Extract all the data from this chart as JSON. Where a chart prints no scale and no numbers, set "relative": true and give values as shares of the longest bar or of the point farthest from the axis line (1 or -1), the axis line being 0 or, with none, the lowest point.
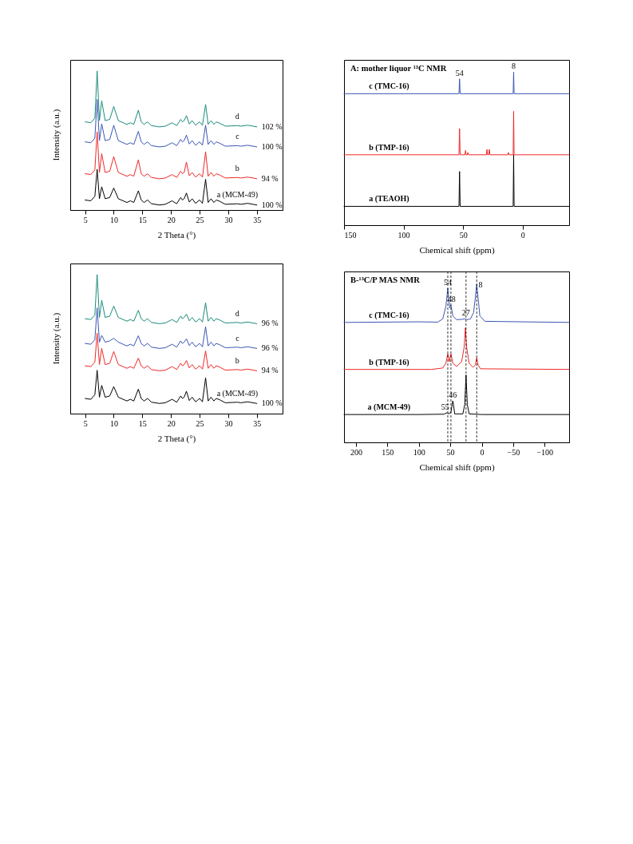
{
  "chart_data": [
    {
      "type": "line",
      "relative": true,
      "xlabel": "2 Theta (°)",
      "ylabel": "Intensity (a.u.)",
      "xlim": [
        2.4,
        39.5
      ],
      "xticks": [
        5,
        10,
        15,
        20,
        25,
        30,
        35
      ],
      "x": [
        5,
        6,
        6.7,
        7.1,
        7.5,
        7.9,
        8.5,
        9.3,
        10.0,
        10.8,
        12.3,
        12.9,
        13.5,
        14.3,
        14.8,
        15.3,
        15.9,
        16.6,
        18,
        19,
        20.2,
        21,
        21.7,
        22.0,
        22.3,
        22.7,
        23.2,
        23.7,
        24.3,
        25.0,
        25.5,
        26.05,
        26.5,
        27.0,
        27.5,
        27.9,
        28.5,
        29.5,
        31.6,
        32.2,
        33.4,
        35
      ],
      "series": [
        {
          "name": "a (MCM-49)",
          "color": "#000000",
          "values": [
            0.072,
            0.066,
            0.099,
            0.293,
            0.081,
            0.167,
            0.081,
            0.09,
            0.158,
            0.081,
            0.054,
            0.066,
            0.054,
            0.138,
            0.072,
            0.054,
            0.072,
            0.045,
            0.036,
            0.041,
            0.066,
            0.045,
            0.09,
            0.072,
            0.081,
            0.122,
            0.057,
            0.081,
            0.048,
            0.072,
            0.048,
            0.221,
            0.054,
            0.081,
            0.054,
            0.072,
            0.063,
            0.041,
            0.045,
            0.041,
            0.048,
            0.036
          ]
        },
        {
          "name": "b",
          "color": "#f02828",
          "values": [
            0.261,
            0.255,
            0.288,
            0.562,
            0.27,
            0.405,
            0.27,
            0.279,
            0.384,
            0.27,
            0.243,
            0.255,
            0.243,
            0.361,
            0.261,
            0.243,
            0.261,
            0.234,
            0.225,
            0.23,
            0.255,
            0.234,
            0.279,
            0.261,
            0.27,
            0.345,
            0.246,
            0.27,
            0.237,
            0.261,
            0.237,
            0.418,
            0.243,
            0.27,
            0.243,
            0.261,
            0.252,
            0.23,
            0.234,
            0.23,
            0.237,
            0.225
          ]
        },
        {
          "name": "c",
          "color": "#3a56b4",
          "values": [
            0.49,
            0.484,
            0.517,
            0.795,
            0.499,
            0.619,
            0.499,
            0.508,
            0.61,
            0.499,
            0.472,
            0.484,
            0.472,
            0.566,
            0.49,
            0.472,
            0.49,
            0.463,
            0.454,
            0.459,
            0.484,
            0.463,
            0.508,
            0.49,
            0.499,
            0.539,
            0.475,
            0.499,
            0.466,
            0.49,
            0.466,
            0.61,
            0.472,
            0.499,
            0.472,
            0.49,
            0.481,
            0.459,
            0.463,
            0.459,
            0.466,
            0.454
          ]
        },
        {
          "name": "d",
          "color": "#1a8a7c",
          "values": [
            0.634,
            0.628,
            0.661,
            1.0,
            0.643,
            0.785,
            0.643,
            0.652,
            0.745,
            0.643,
            0.616,
            0.628,
            0.616,
            0.718,
            0.634,
            0.616,
            0.634,
            0.607,
            0.598,
            0.603,
            0.628,
            0.607,
            0.652,
            0.634,
            0.643,
            0.679,
            0.619,
            0.643,
            0.61,
            0.634,
            0.61,
            0.759,
            0.616,
            0.643,
            0.616,
            0.634,
            0.625,
            0.603,
            0.607,
            0.603,
            0.61,
            0.598
          ]
        }
      ],
      "annotations": [
        "100 %",
        "94 %",
        "100 %",
        "102 %"
      ]
    },
    {
      "type": "line",
      "relative": true,
      "title": "A: mother liquor ¹³C NMR",
      "xlabel": "Chemical shift (ppm)",
      "xlim": [
        150,
        -39
      ],
      "xticks": [
        150,
        100,
        50,
        0
      ],
      "series": [
        {
          "name": "a (TEAOH)",
          "color": "#000000",
          "x": [
            150,
            53.5,
            53,
            52.5,
            8,
            7.6,
            7.2,
            -39
          ],
          "values": [
            0.123,
            0.123,
            0.351,
            0.123,
            0.123,
            0.46,
            0.123,
            0.123
          ]
        },
        {
          "name": "b (TMP-16)",
          "color": "#f02828",
          "x": [
            150,
            53.5,
            53,
            52.5,
            48.5,
            48,
            47.5,
            46.5,
            46,
            45.5,
            30.5,
            30,
            29.5,
            28.5,
            28,
            27.5,
            12.5,
            12,
            11.5,
            8,
            7.6,
            7.2,
            -39
          ],
          "values": [
            0.46,
            0.46,
            0.631,
            0.46,
            0.46,
            0.488,
            0.46,
            0.46,
            0.475,
            0.46,
            0.46,
            0.495,
            0.46,
            0.46,
            0.495,
            0.46,
            0.46,
            0.475,
            0.46,
            0.46,
            0.744,
            0.46,
            0.46
          ]
        },
        {
          "name": "c (TMC-16)",
          "color": "#3a56b4",
          "x": [
            150,
            53.5,
            53,
            52.5,
            8,
            7.6,
            7.2,
            -39
          ],
          "values": [
            0.859,
            0.859,
            0.956,
            0.859,
            0.859,
            1.0,
            0.859,
            0.859
          ]
        }
      ],
      "annotations": [
        {
          "text": "54",
          "x": 53,
          "y": 0.956
        },
        {
          "text": "8",
          "x": 7.6,
          "y": 1.0
        }
      ]
    },
    {
      "type": "line",
      "relative": true,
      "xlabel": "2 Theta (°)",
      "ylabel": "Intensity (a.u.)",
      "xlim": [
        2.4,
        39.5
      ],
      "xticks": [
        5,
        10,
        15,
        20,
        25,
        30,
        35
      ],
      "x": [
        5,
        6,
        6.7,
        7.1,
        7.5,
        7.9,
        8.5,
        9.3,
        10.0,
        10.8,
        12.3,
        12.9,
        13.5,
        14.3,
        14.8,
        15.3,
        15.9,
        16.6,
        18,
        19,
        20.2,
        21,
        21.7,
        22.0,
        22.3,
        22.7,
        23.2,
        23.7,
        24.3,
        25.0,
        25.5,
        26.05,
        26.5,
        27.0,
        27.5,
        27.9,
        28.5,
        29.5,
        31.6,
        32.2,
        33.4,
        35
      ],
      "series": [
        {
          "name": "a (MCM-49)",
          "color": "#000000",
          "values": [
            0.109,
            0.103,
            0.136,
            0.312,
            0.118,
            0.203,
            0.118,
            0.127,
            0.194,
            0.118,
            0.091,
            0.103,
            0.091,
            0.176,
            0.109,
            0.091,
            0.109,
            0.082,
            0.073,
            0.078,
            0.103,
            0.082,
            0.127,
            0.109,
            0.118,
            0.161,
            0.094,
            0.118,
            0.085,
            0.109,
            0.085,
            0.257,
            0.091,
            0.118,
            0.091,
            0.109,
            0.1,
            0.078,
            0.082,
            0.078,
            0.085,
            0.073
          ]
        },
        {
          "name": "b",
          "color": "#f02828",
          "values": [
            0.344,
            0.338,
            0.371,
            0.578,
            0.353,
            0.469,
            0.353,
            0.362,
            0.447,
            0.353,
            0.326,
            0.338,
            0.326,
            0.399,
            0.344,
            0.326,
            0.344,
            0.317,
            0.308,
            0.313,
            0.338,
            0.317,
            0.362,
            0.344,
            0.353,
            0.382,
            0.329,
            0.353,
            0.32,
            0.344,
            0.32,
            0.451,
            0.326,
            0.353,
            0.326,
            0.344,
            0.335,
            0.313,
            0.317,
            0.313,
            0.32,
            0.308
          ]
        },
        {
          "name": "c",
          "color": "#3a56b4",
          "values": [
            0.505,
            0.499,
            0.532,
            0.761,
            0.514,
            0.563,
            0.514,
            0.523,
            0.542,
            0.514,
            0.487,
            0.499,
            0.487,
            0.56,
            0.505,
            0.487,
            0.505,
            0.478,
            0.469,
            0.474,
            0.499,
            0.478,
            0.523,
            0.505,
            0.514,
            0.538,
            0.49,
            0.514,
            0.481,
            0.505,
            0.481,
            0.625,
            0.487,
            0.514,
            0.487,
            0.505,
            0.496,
            0.474,
            0.478,
            0.474,
            0.481,
            0.469
          ]
        },
        {
          "name": "d",
          "color": "#1a8a7c",
          "values": [
            0.683,
            0.677,
            0.71,
            1.0,
            0.692,
            0.815,
            0.692,
            0.701,
            0.774,
            0.692,
            0.665,
            0.677,
            0.665,
            0.743,
            0.683,
            0.665,
            0.683,
            0.656,
            0.647,
            0.652,
            0.677,
            0.656,
            0.701,
            0.683,
            0.692,
            0.716,
            0.668,
            0.692,
            0.659,
            0.683,
            0.659,
            0.797,
            0.665,
            0.692,
            0.665,
            0.683,
            0.674,
            0.652,
            0.656,
            0.652,
            0.659,
            0.647
          ]
        }
      ],
      "annotations": [
        "100 %",
        "94 %",
        "96 %",
        "96 %"
      ]
    },
    {
      "type": "line",
      "relative": true,
      "title": "B-¹³C/P MAS NMR",
      "xlabel": "Chemical shift (ppm)",
      "xlim": [
        219,
        -139
      ],
      "xticks": [
        200,
        150,
        100,
        50,
        0,
        -50,
        -100
      ],
      "series": [
        {
          "name": "a (MCM-49)",
          "color": "#000000",
          "x": [
            219,
            100,
            60,
            56,
            55,
            53,
            49,
            47,
            46,
            45,
            43,
            30,
            27,
            25.5,
            25,
            24.5,
            23,
            20,
            0,
            -139
          ],
          "values": [
            0.176,
            0.176,
            0.178,
            0.186,
            0.188,
            0.18,
            0.19,
            0.24,
            0.262,
            0.24,
            0.18,
            0.18,
            0.24,
            0.38,
            0.426,
            0.38,
            0.24,
            0.18,
            0.176,
            0.176
          ]
        },
        {
          "name": "b (TMP-16)",
          "color": "#f02828",
          "x": [
            219,
            80,
            62,
            57,
            54,
            51.5,
            49,
            46,
            40,
            32,
            28,
            26,
            24,
            20,
            14,
            10,
            8,
            6,
            2,
            -139
          ],
          "values": [
            0.461,
            0.461,
            0.47,
            0.5,
            0.56,
            0.51,
            0.56,
            0.5,
            0.48,
            0.51,
            0.6,
            0.724,
            0.6,
            0.5,
            0.475,
            0.49,
            0.535,
            0.49,
            0.465,
            0.461
          ]
        },
        {
          "name": "c (TMC-16)",
          "color": "#3a56b4",
          "x": [
            219,
            100,
            70,
            62,
            57,
            54,
            51,
            49,
            46,
            40,
            30,
            27,
            24,
            18,
            13,
            10,
            8,
            6,
            3,
            -5,
            -139
          ],
          "values": [
            0.758,
            0.762,
            0.76,
            0.78,
            0.86,
            0.974,
            0.85,
            0.867,
            0.8,
            0.775,
            0.778,
            0.781,
            0.775,
            0.78,
            0.82,
            0.92,
            1.0,
            0.92,
            0.8,
            0.765,
            0.758
          ]
        }
      ],
      "ref_lines": [
        {
          "axis": "x",
          "value": 54,
          "line_style": "dashed"
        },
        {
          "axis": "x",
          "value": 49,
          "line_style": "dashed"
        },
        {
          "axis": "x",
          "value": 25,
          "line_style": "dashed"
        },
        {
          "axis": "x",
          "value": 8,
          "line_style": "dashed"
        }
      ],
      "annotations": [
        {
          "text": "54",
          "x": 54,
          "y": 0.974
        },
        {
          "text": "48",
          "x": 48,
          "y": 0.867
        },
        {
          "text": "27",
          "x": 25,
          "y": 0.781
        },
        {
          "text": "8",
          "x": 2,
          "y": 0.96
        },
        {
          "text": "46",
          "x": 46,
          "y": 0.262
        },
        {
          "text": "55",
          "x": 58,
          "y": 0.188
        }
      ]
    }
  ]
}
